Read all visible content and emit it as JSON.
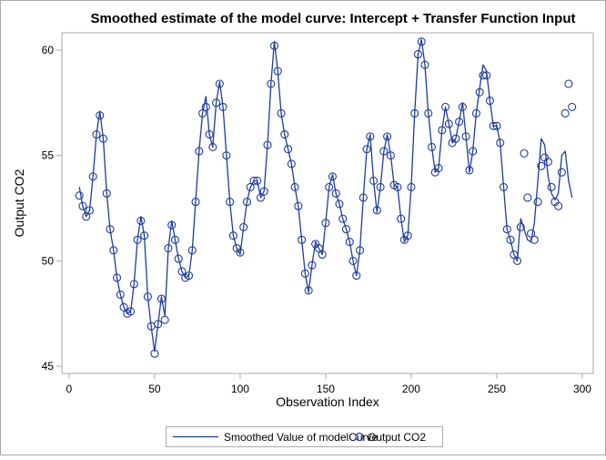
{
  "chart_data": {
    "type": "line",
    "title": "Smoothed estimate of the model curve: Intercept + Transfer Function Input",
    "xlabel": "Observation Index",
    "ylabel": "Output CO2",
    "xlim": [
      -4.2,
      306.4
    ],
    "ylim": [
      44.66,
      60.82
    ],
    "xticks": [
      0,
      50,
      100,
      150,
      200,
      250,
      300
    ],
    "yticks": [
      45,
      50,
      55,
      60
    ],
    "grid": false,
    "legend_position": "bottom",
    "colors": {
      "line": "#1f3d99",
      "marker": "#1f3d99",
      "frame": "#aaaaaa"
    },
    "x": [
      6,
      8,
      10,
      12,
      14,
      16,
      18,
      20,
      22,
      24,
      26,
      28,
      30,
      32,
      34,
      36,
      38,
      40,
      42,
      44,
      46,
      48,
      50,
      52,
      54,
      56,
      58,
      60,
      62,
      64,
      66,
      68,
      70,
      72,
      74,
      76,
      78,
      80,
      82,
      84,
      86,
      88,
      90,
      92,
      94,
      96,
      98,
      100,
      102,
      104,
      106,
      108,
      110,
      112,
      114,
      116,
      118,
      120,
      122,
      124,
      126,
      128,
      130,
      132,
      134,
      136,
      138,
      140,
      142,
      144,
      146,
      148,
      150,
      152,
      154,
      156,
      158,
      160,
      162,
      164,
      166,
      168,
      170,
      172,
      174,
      176,
      178,
      180,
      182,
      184,
      186,
      188,
      190,
      192,
      194,
      196,
      198,
      200,
      202,
      204,
      206,
      208,
      210,
      212,
      214,
      216,
      218,
      220,
      222,
      224,
      226,
      228,
      230,
      232,
      234,
      236,
      238,
      240,
      242,
      244,
      246,
      248,
      250,
      252,
      254,
      256,
      258,
      260,
      262,
      264,
      266,
      268,
      270,
      272,
      274,
      276,
      278,
      280,
      282,
      284,
      286,
      288,
      290,
      292,
      294
    ],
    "series": [
      {
        "name": "Smoothed Value of modelCurve",
        "style": "line",
        "values": [
          53.5,
          52.6,
          52.1,
          52.4,
          54.0,
          56.0,
          57.1,
          55.8,
          53.2,
          51.5,
          50.5,
          49.2,
          48.4,
          47.8,
          47.5,
          47.6,
          48.9,
          51.0,
          52.1,
          51.2,
          48.3,
          46.9,
          45.7,
          47.0,
          48.3,
          47.4,
          50.6,
          51.9,
          51.0,
          50.1,
          49.5,
          49.2,
          49.3,
          50.5,
          52.8,
          55.2,
          57.0,
          57.8,
          56.0,
          55.4,
          57.5,
          58.5,
          57.3,
          55.0,
          52.8,
          51.2,
          50.6,
          50.3,
          51.6,
          52.8,
          53.5,
          53.8,
          53.8,
          53.0,
          53.3,
          55.5,
          58.4,
          60.4,
          59.0,
          57.0,
          56.0,
          55.3,
          54.6,
          53.5,
          52.6,
          51.0,
          49.4,
          48.5,
          49.8,
          50.9,
          50.6,
          50.3,
          51.8,
          53.5,
          54.1,
          53.2,
          52.7,
          52.0,
          51.5,
          50.9,
          50.0,
          49.3,
          50.5,
          53.0,
          55.3,
          56.0,
          53.8,
          52.3,
          53.5,
          55.2,
          56.0,
          55.0,
          53.6,
          53.5,
          52.0,
          50.9,
          51.2,
          53.5,
          57.0,
          59.8,
          60.5,
          59.3,
          57.0,
          55.4,
          54.2,
          54.4,
          56.2,
          57.3,
          56.5,
          55.6,
          55.8,
          56.6,
          57.5,
          55.9,
          54.2,
          55.2,
          57.0,
          58.2,
          59.3,
          59.0,
          57.6,
          56.4,
          56.4,
          55.6,
          53.5,
          51.5,
          51.0,
          50.3,
          50.0,
          52.0,
          51.5,
          51.0,
          50.9,
          51.8,
          53.8,
          55.8,
          55.5,
          54.0,
          53.2,
          52.9,
          53.2,
          55.0,
          55.2,
          53.8,
          53.0
        ]
      },
      {
        "name": "Output CO2",
        "style": "marker",
        "values": [
          53.1,
          52.6,
          52.1,
          52.4,
          54.0,
          56.0,
          56.9,
          55.8,
          53.2,
          51.5,
          50.5,
          49.2,
          48.4,
          47.8,
          47.5,
          47.6,
          48.9,
          51.0,
          51.9,
          51.2,
          48.3,
          46.9,
          45.6,
          47.0,
          48.2,
          47.2,
          50.6,
          51.7,
          51.0,
          50.1,
          49.5,
          49.2,
          49.3,
          50.5,
          52.8,
          55.2,
          57.0,
          57.3,
          56.0,
          55.4,
          57.5,
          58.4,
          57.3,
          55.0,
          52.8,
          51.2,
          50.6,
          50.4,
          51.6,
          52.8,
          53.5,
          53.8,
          53.8,
          53.0,
          53.3,
          55.5,
          58.4,
          60.2,
          59.0,
          57.0,
          56.0,
          55.3,
          54.6,
          53.5,
          52.6,
          51.0,
          49.4,
          48.6,
          49.8,
          50.8,
          50.6,
          50.3,
          51.8,
          53.5,
          54.0,
          53.2,
          52.7,
          52.0,
          51.5,
          50.9,
          50.0,
          49.3,
          50.5,
          53.0,
          55.3,
          55.9,
          53.8,
          52.4,
          53.5,
          55.2,
          55.9,
          55.0,
          53.6,
          53.5,
          52.0,
          51.0,
          51.2,
          53.5,
          57.0,
          59.8,
          60.4,
          59.3,
          57.0,
          55.4,
          54.2,
          54.4,
          56.2,
          57.3,
          56.5,
          55.6,
          55.8,
          56.6,
          57.3,
          55.9,
          54.3,
          55.2,
          57.0,
          58.0,
          58.8,
          58.8,
          57.6,
          56.4,
          56.4,
          55.6,
          53.5,
          51.5,
          51.0,
          50.3,
          50.0,
          51.6,
          55.1,
          53.0,
          51.3,
          51.0,
          52.8,
          54.5,
          54.9,
          54.7,
          53.5,
          52.8,
          52.6,
          54.2,
          57.0,
          58.4,
          57.3
        ]
      }
    ]
  }
}
